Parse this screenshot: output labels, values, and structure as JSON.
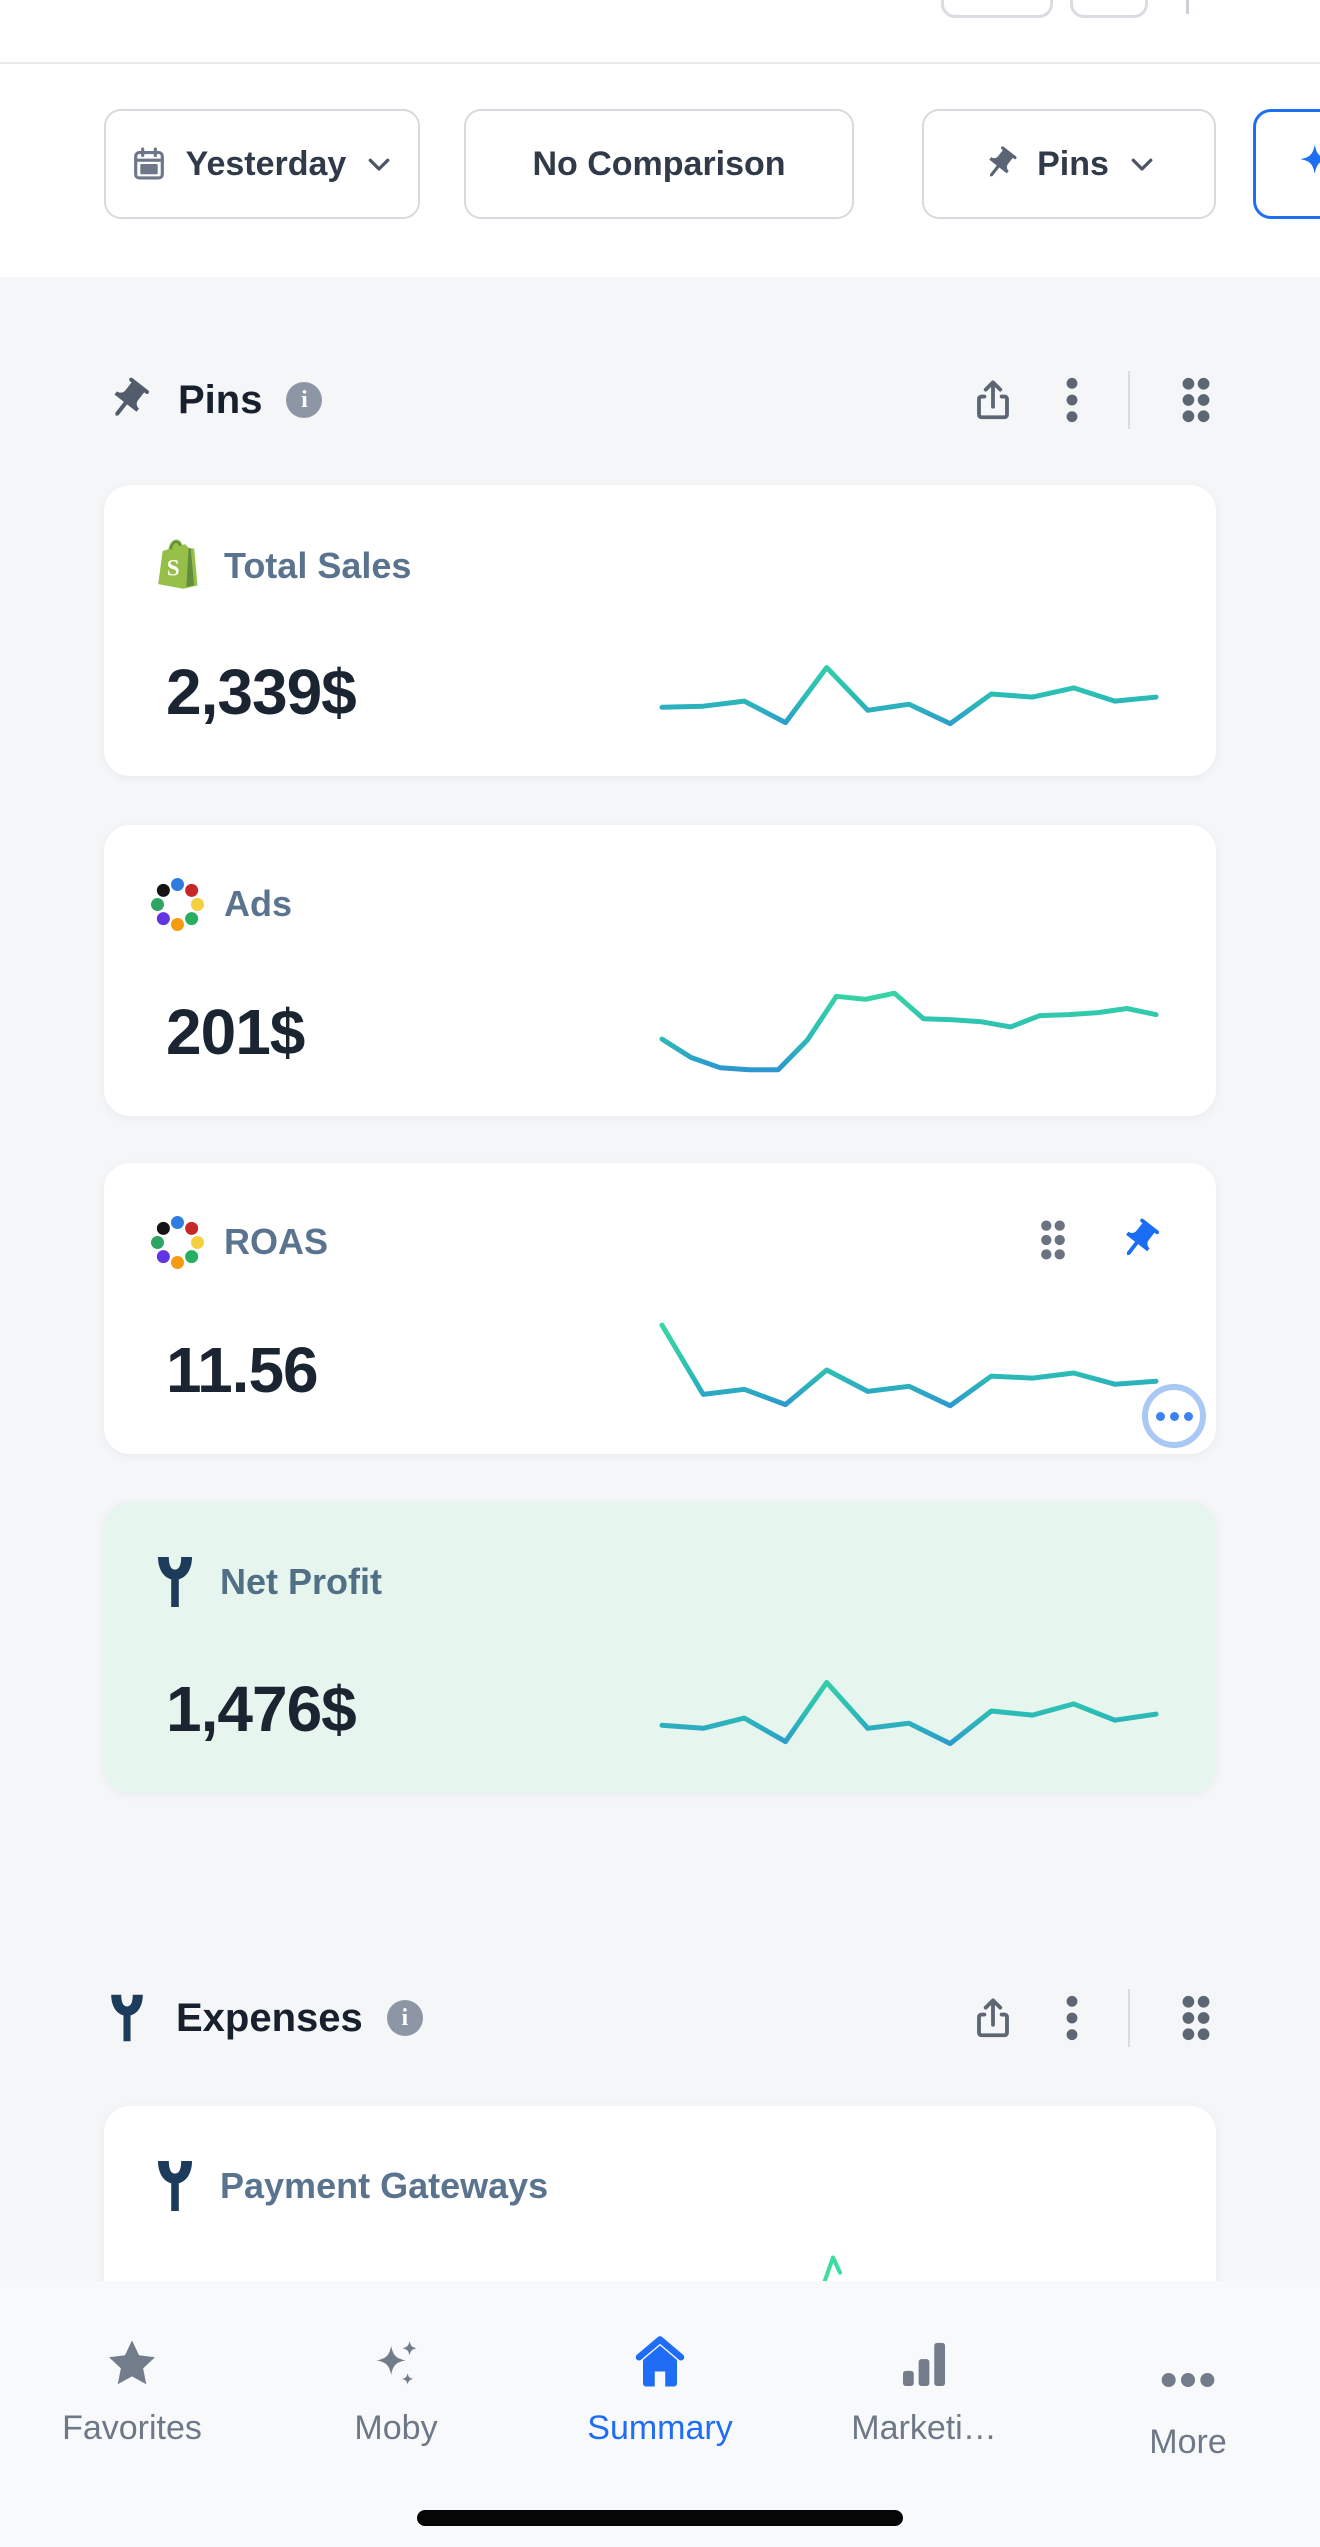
{
  "toolbar": {
    "date_range_label": "Yesterday",
    "comparison_label": "No Comparison",
    "view_label": "Pins"
  },
  "sections": [
    {
      "title": "Pins",
      "icon": "pin-icon",
      "actions": [
        "share",
        "more",
        "drag-handle"
      ]
    },
    {
      "title": "Expenses",
      "icon": "trueprofit-icon",
      "actions": [
        "share",
        "more",
        "drag-handle"
      ]
    }
  ],
  "cards": [
    {
      "label": "Total Sales",
      "value": "2,339$",
      "icon": "shopify-icon",
      "sparkline": [
        37,
        38,
        43,
        22,
        76,
        34,
        40,
        21,
        50,
        47,
        56,
        43,
        47
      ]
    },
    {
      "label": "Ads",
      "value": "201$",
      "icon": "ads-channels-icon",
      "sparkline": [
        45,
        27,
        17,
        15,
        15,
        44,
        87,
        84,
        90,
        65,
        64,
        62,
        57,
        68,
        69,
        71,
        75,
        69
      ]
    },
    {
      "label": "ROAS",
      "value": "11.56",
      "icon": "ads-channels-icon",
      "pinned": true,
      "sparkline": [
        96,
        28,
        33,
        18,
        52,
        31,
        36,
        17,
        46,
        44,
        49,
        38,
        41
      ]
    },
    {
      "label": "Net Profit",
      "value": "1,476$",
      "icon": "trueprofit-icon",
      "highlight_bg": "#e7f5ef",
      "sparkline": [
        36,
        33,
        43,
        20,
        78,
        33,
        38,
        18,
        50,
        46,
        57,
        41,
        47
      ]
    },
    {
      "label": "Payment Gateways",
      "icon": "trueprofit-icon"
    }
  ],
  "nav": {
    "items": [
      {
        "label": "Favorites",
        "icon": "star-icon",
        "active": false
      },
      {
        "label": "Moby",
        "icon": "sparkles-icon",
        "active": false
      },
      {
        "label": "Summary",
        "icon": "home-icon",
        "active": true
      },
      {
        "label": "Marketi…",
        "icon": "bar-chart-icon",
        "active": false
      },
      {
        "label": "More",
        "icon": "ellipsis-icon",
        "active": false
      }
    ]
  },
  "colors": {
    "accent_blue": "#1f6cf5",
    "mint_card_bg": "#e7f5ef",
    "spark_top_green": "#3edc9e",
    "spark_bottom_blue": "#2e7ee0",
    "shopify_green": "#95bf47",
    "trueprofit_navy": "#1d3b5a"
  }
}
